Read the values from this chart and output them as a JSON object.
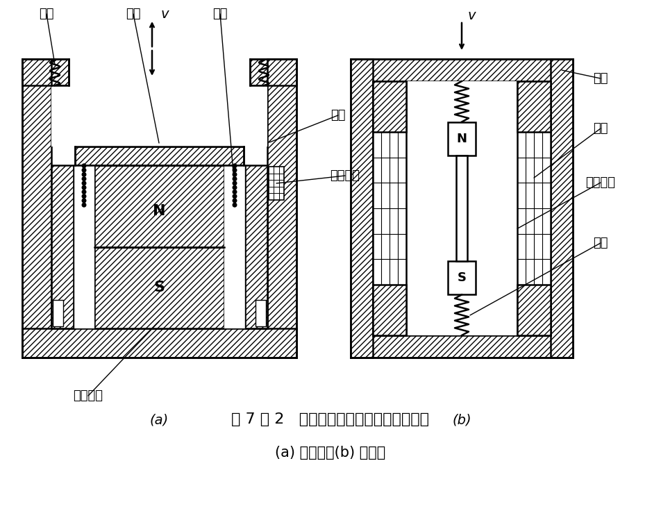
{
  "title_main": "图 7 － 2   恒磁通式磁电传感器结构原理图",
  "title_sub": "(a) 动圈式；(b) 动铁式",
  "label_a": "(a)",
  "label_b": "(b)",
  "bg_color": "#ffffff"
}
